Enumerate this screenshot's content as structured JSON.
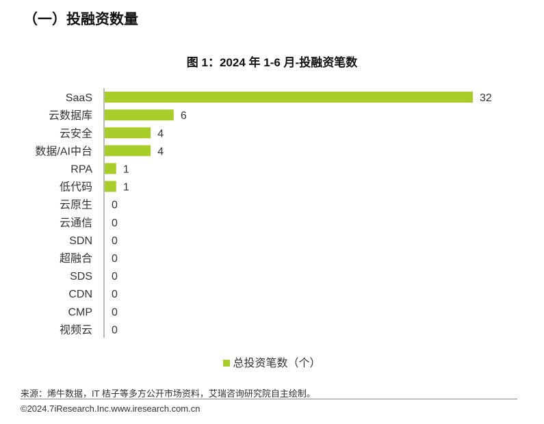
{
  "section_title": "（一）投融资数量",
  "chart_title": "图 1：2024 年 1-6 月-投融资笔数",
  "legend_label": "总投资笔数（个）",
  "source_text": "来源：烯牛数据，IT 桔子等多方公开市场资料，艾瑞咨询研究院自主绘制。",
  "copyright_text": "©2024.7iResearch.Inc.www.iresearch.com.cn",
  "chart_data": {
    "type": "bar",
    "orientation": "horizontal",
    "title": "图 1：2024 年 1-6 月-投融资笔数",
    "categories": [
      "SaaS",
      "云数据库",
      "云安全",
      "数据/AI中台",
      "RPA",
      "低代码",
      "云原生",
      "云通信",
      "SDN",
      "超融合",
      "SDS",
      "CDN",
      "CMP",
      "视频云"
    ],
    "series": [
      {
        "name": "总投资笔数（个）",
        "values": [
          32,
          6,
          4,
          4,
          1,
          1,
          0,
          0,
          0,
          0,
          0,
          0,
          0,
          0
        ]
      }
    ],
    "xlim": [
      0,
      32
    ],
    "grid": false,
    "legend_position": "bottom",
    "bar_color": "#a8cd2b"
  }
}
